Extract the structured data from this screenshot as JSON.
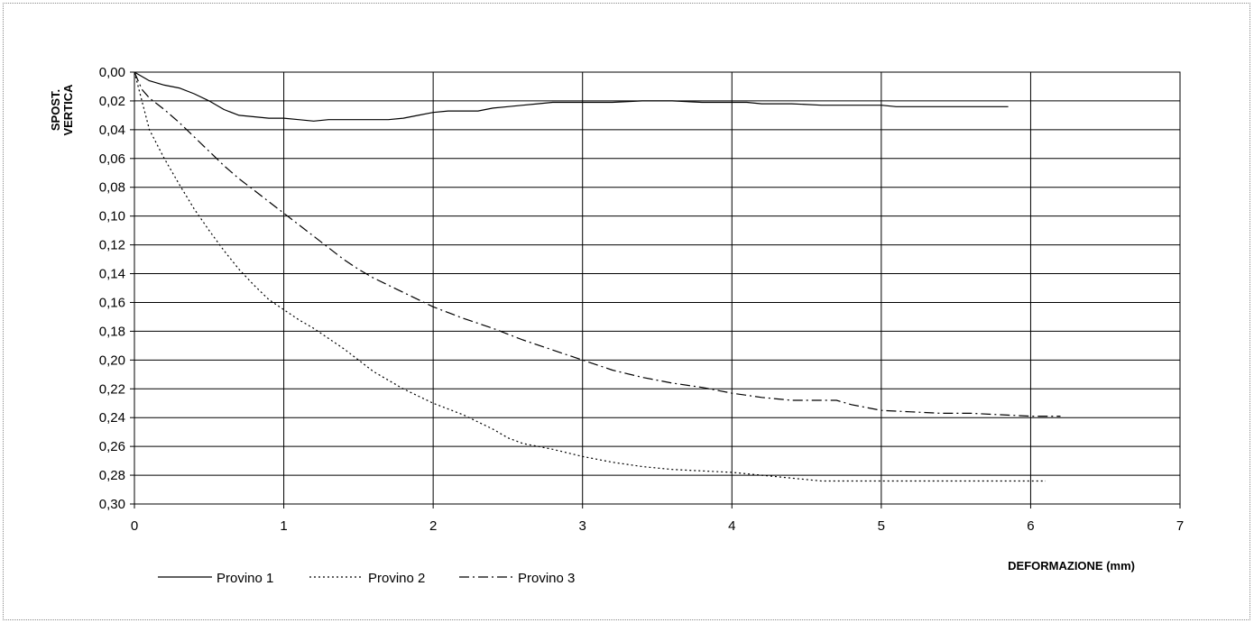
{
  "chart_data": {
    "type": "line",
    "title": "",
    "xlabel": "DEFORMAZIONE (mm)",
    "ylabel_lines": [
      "SPOST.",
      "VERTICA"
    ],
    "xlim": [
      0,
      7
    ],
    "ylim": [
      0,
      0.3
    ],
    "y_inverted": true,
    "grid": true,
    "x_ticks": [
      0,
      1,
      2,
      3,
      4,
      5,
      6,
      7
    ],
    "x_tick_labels": [
      "0",
      "1",
      "2",
      "3",
      "4",
      "5",
      "6",
      "7"
    ],
    "y_ticks": [
      0,
      0.02,
      0.04,
      0.06,
      0.08,
      0.1,
      0.12,
      0.14,
      0.16,
      0.18,
      0.2,
      0.22,
      0.24,
      0.26,
      0.28,
      0.3
    ],
    "y_tick_labels": [
      "0,00",
      "0,02",
      "0,04",
      "0,06",
      "0,08",
      "0,10",
      "0,12",
      "0,14",
      "0,16",
      "0,18",
      "0,20",
      "0,22",
      "0,24",
      "0,26",
      "0,28",
      "0,30"
    ],
    "legend_position": "bottom-left",
    "series": [
      {
        "name": "Provino 1",
        "style": "solid",
        "color": "#000000",
        "x": [
          0,
          0.1,
          0.2,
          0.3,
          0.4,
          0.5,
          0.6,
          0.7,
          0.8,
          0.9,
          1.0,
          1.1,
          1.2,
          1.3,
          1.4,
          1.5,
          1.6,
          1.7,
          1.8,
          1.9,
          2.0,
          2.1,
          2.2,
          2.3,
          2.4,
          2.5,
          2.6,
          2.7,
          2.8,
          2.9,
          3.0,
          3.2,
          3.4,
          3.6,
          3.8,
          4.0,
          4.1,
          4.2,
          4.4,
          4.6,
          4.8,
          5.0,
          5.1,
          5.2,
          5.4,
          5.6,
          5.85
        ],
        "y": [
          0,
          0.006,
          0.009,
          0.011,
          0.015,
          0.02,
          0.026,
          0.03,
          0.031,
          0.032,
          0.032,
          0.033,
          0.034,
          0.033,
          0.033,
          0.033,
          0.033,
          0.033,
          0.032,
          0.03,
          0.028,
          0.027,
          0.027,
          0.027,
          0.025,
          0.024,
          0.023,
          0.022,
          0.021,
          0.021,
          0.021,
          0.021,
          0.02,
          0.02,
          0.021,
          0.021,
          0.021,
          0.022,
          0.022,
          0.023,
          0.023,
          0.023,
          0.024,
          0.024,
          0.024,
          0.024,
          0.024
        ]
      },
      {
        "name": "Provino 2",
        "style": "dotted",
        "color": "#000000",
        "x": [
          0,
          0.05,
          0.1,
          0.2,
          0.3,
          0.4,
          0.5,
          0.6,
          0.7,
          0.8,
          0.9,
          1.0,
          1.1,
          1.2,
          1.3,
          1.4,
          1.5,
          1.6,
          1.7,
          1.8,
          1.9,
          2.0,
          2.2,
          2.4,
          2.5,
          2.6,
          2.8,
          3.0,
          3.2,
          3.4,
          3.6,
          3.8,
          4.0,
          4.2,
          4.4,
          4.6,
          4.8,
          5.0,
          5.5,
          6.1
        ],
        "y": [
          0,
          0.02,
          0.04,
          0.06,
          0.078,
          0.095,
          0.11,
          0.124,
          0.137,
          0.148,
          0.158,
          0.165,
          0.172,
          0.178,
          0.185,
          0.192,
          0.2,
          0.208,
          0.214,
          0.22,
          0.225,
          0.23,
          0.238,
          0.248,
          0.254,
          0.258,
          0.262,
          0.267,
          0.271,
          0.274,
          0.276,
          0.277,
          0.278,
          0.28,
          0.282,
          0.284,
          0.284,
          0.284,
          0.284,
          0.284
        ]
      },
      {
        "name": "Provino 3",
        "style": "dashdot",
        "color": "#000000",
        "x": [
          0,
          0.05,
          0.1,
          0.2,
          0.3,
          0.4,
          0.5,
          0.6,
          0.7,
          0.8,
          0.9,
          1.0,
          1.1,
          1.2,
          1.3,
          1.4,
          1.5,
          1.6,
          1.7,
          1.8,
          1.9,
          2.0,
          2.2,
          2.4,
          2.6,
          2.8,
          3.0,
          3.2,
          3.4,
          3.6,
          3.8,
          4.0,
          4.2,
          4.4,
          4.6,
          4.7,
          4.8,
          4.9,
          5.0,
          5.2,
          5.4,
          5.6,
          5.8,
          6.0,
          6.1,
          6.2
        ],
        "y": [
          0,
          0.012,
          0.018,
          0.026,
          0.035,
          0.045,
          0.055,
          0.065,
          0.074,
          0.082,
          0.09,
          0.098,
          0.106,
          0.114,
          0.122,
          0.13,
          0.137,
          0.143,
          0.148,
          0.153,
          0.158,
          0.163,
          0.171,
          0.178,
          0.186,
          0.193,
          0.2,
          0.207,
          0.212,
          0.216,
          0.219,
          0.223,
          0.226,
          0.228,
          0.228,
          0.228,
          0.231,
          0.233,
          0.235,
          0.236,
          0.237,
          0.237,
          0.238,
          0.239,
          0.239,
          0.239
        ]
      }
    ]
  }
}
